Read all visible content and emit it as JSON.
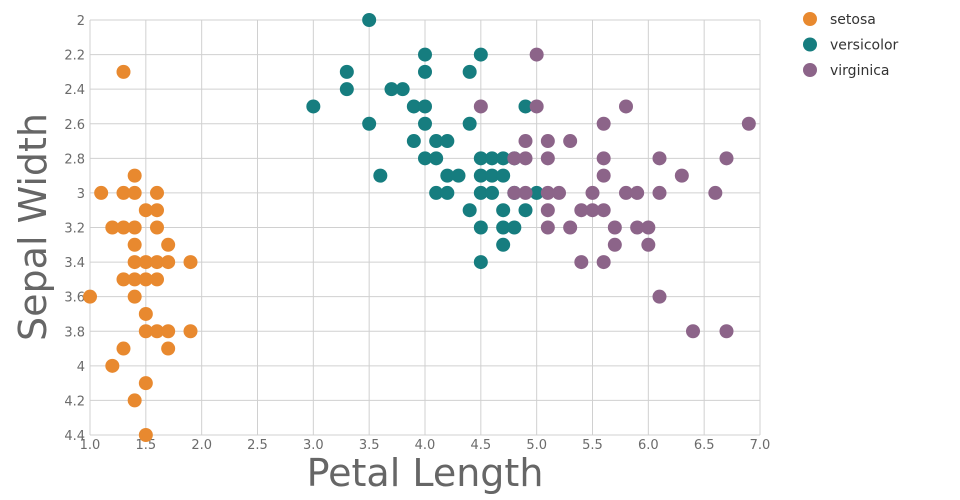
{
  "chart_data": {
    "type": "scatter",
    "xlabel": "Petal Length",
    "ylabel": "Sepal Width",
    "xlim": [
      1.0,
      7.0
    ],
    "ylim": [
      2.0,
      4.4
    ],
    "y_inverted": true,
    "x_ticks": [
      "1.0",
      "1.5",
      "2.0",
      "2.5",
      "3.0",
      "3.5",
      "4.0",
      "4.5",
      "5.0",
      "5.5",
      "6.0",
      "6.5",
      "7.0"
    ],
    "y_ticks": [
      "2",
      "2.2",
      "2.4",
      "2.6",
      "2.8",
      "3",
      "3.2",
      "3.4",
      "3.6",
      "3.8",
      "4",
      "4.2",
      "4.4"
    ],
    "grid": true,
    "legend_position": "top-right",
    "series": [
      {
        "name": "setosa",
        "color": "#e8892f",
        "points": [
          [
            1.3,
            2.3
          ],
          [
            1.4,
            2.9
          ],
          [
            1.1,
            3.0
          ],
          [
            1.3,
            3.0
          ],
          [
            1.4,
            3.0
          ],
          [
            1.6,
            3.0
          ],
          [
            1.5,
            3.1
          ],
          [
            1.6,
            3.1
          ],
          [
            1.2,
            3.2
          ],
          [
            1.3,
            3.2
          ],
          [
            1.4,
            3.2
          ],
          [
            1.6,
            3.2
          ],
          [
            1.4,
            3.3
          ],
          [
            1.7,
            3.3
          ],
          [
            1.4,
            3.4
          ],
          [
            1.5,
            3.4
          ],
          [
            1.6,
            3.4
          ],
          [
            1.7,
            3.4
          ],
          [
            1.9,
            3.4
          ],
          [
            1.3,
            3.5
          ],
          [
            1.4,
            3.5
          ],
          [
            1.5,
            3.5
          ],
          [
            1.6,
            3.5
          ],
          [
            1.0,
            3.6
          ],
          [
            1.4,
            3.6
          ],
          [
            1.5,
            3.7
          ],
          [
            1.5,
            3.8
          ],
          [
            1.6,
            3.8
          ],
          [
            1.7,
            3.8
          ],
          [
            1.9,
            3.8
          ],
          [
            1.3,
            3.9
          ],
          [
            1.7,
            3.9
          ],
          [
            1.2,
            4.0
          ],
          [
            1.5,
            4.1
          ],
          [
            1.4,
            4.2
          ],
          [
            1.5,
            4.4
          ]
        ]
      },
      {
        "name": "versicolor",
        "color": "#167d7f",
        "points": [
          [
            3.5,
            2.0
          ],
          [
            4.0,
            2.2
          ],
          [
            4.5,
            2.2
          ],
          [
            3.3,
            2.3
          ],
          [
            4.0,
            2.3
          ],
          [
            4.4,
            2.3
          ],
          [
            3.3,
            2.4
          ],
          [
            3.7,
            2.4
          ],
          [
            3.8,
            2.4
          ],
          [
            3.0,
            2.5
          ],
          [
            3.9,
            2.5
          ],
          [
            4.0,
            2.5
          ],
          [
            4.9,
            2.5
          ],
          [
            3.5,
            2.6
          ],
          [
            4.0,
            2.6
          ],
          [
            4.4,
            2.6
          ],
          [
            3.9,
            2.7
          ],
          [
            4.1,
            2.7
          ],
          [
            4.2,
            2.7
          ],
          [
            4.0,
            2.8
          ],
          [
            4.1,
            2.8
          ],
          [
            4.5,
            2.8
          ],
          [
            4.6,
            2.8
          ],
          [
            4.7,
            2.8
          ],
          [
            4.8,
            2.8
          ],
          [
            3.6,
            2.9
          ],
          [
            4.2,
            2.9
          ],
          [
            4.3,
            2.9
          ],
          [
            4.5,
            2.9
          ],
          [
            4.6,
            2.9
          ],
          [
            4.7,
            2.9
          ],
          [
            4.1,
            3.0
          ],
          [
            4.2,
            3.0
          ],
          [
            4.5,
            3.0
          ],
          [
            4.6,
            3.0
          ],
          [
            4.8,
            3.0
          ],
          [
            5.0,
            3.0
          ],
          [
            4.4,
            3.1
          ],
          [
            4.7,
            3.1
          ],
          [
            4.9,
            3.1
          ],
          [
            4.5,
            3.2
          ],
          [
            4.7,
            3.2
          ],
          [
            4.8,
            3.2
          ],
          [
            4.7,
            3.3
          ],
          [
            4.5,
            3.4
          ]
        ]
      },
      {
        "name": "virginica",
        "color": "#8c6489",
        "points": [
          [
            5.0,
            2.2
          ],
          [
            4.5,
            2.5
          ],
          [
            5.0,
            2.5
          ],
          [
            5.8,
            2.5
          ],
          [
            5.6,
            2.6
          ],
          [
            6.9,
            2.6
          ],
          [
            4.9,
            2.7
          ],
          [
            5.1,
            2.7
          ],
          [
            5.3,
            2.7
          ],
          [
            4.8,
            2.8
          ],
          [
            4.9,
            2.8
          ],
          [
            5.1,
            2.8
          ],
          [
            5.6,
            2.8
          ],
          [
            6.1,
            2.8
          ],
          [
            6.7,
            2.8
          ],
          [
            5.6,
            2.9
          ],
          [
            6.3,
            2.9
          ],
          [
            4.8,
            3.0
          ],
          [
            4.9,
            3.0
          ],
          [
            5.1,
            3.0
          ],
          [
            5.2,
            3.0
          ],
          [
            5.5,
            3.0
          ],
          [
            5.8,
            3.0
          ],
          [
            5.9,
            3.0
          ],
          [
            6.1,
            3.0
          ],
          [
            6.6,
            3.0
          ],
          [
            5.1,
            3.1
          ],
          [
            5.4,
            3.1
          ],
          [
            5.5,
            3.1
          ],
          [
            5.6,
            3.1
          ],
          [
            5.1,
            3.2
          ],
          [
            5.3,
            3.2
          ],
          [
            5.7,
            3.2
          ],
          [
            5.9,
            3.2
          ],
          [
            6.0,
            3.2
          ],
          [
            5.7,
            3.3
          ],
          [
            6.0,
            3.3
          ],
          [
            5.4,
            3.4
          ],
          [
            5.6,
            3.4
          ],
          [
            6.1,
            3.6
          ],
          [
            6.4,
            3.8
          ],
          [
            6.7,
            3.8
          ]
        ]
      }
    ]
  }
}
